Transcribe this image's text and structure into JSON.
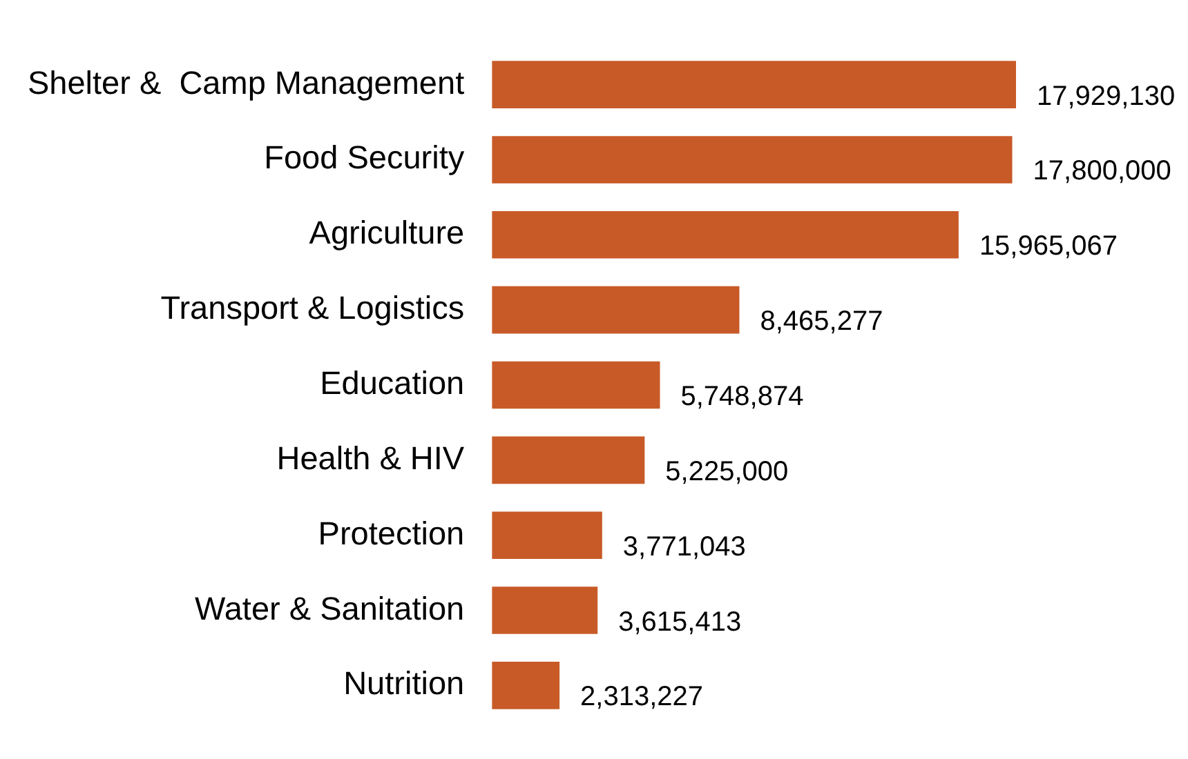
{
  "chart_data": {
    "type": "bar",
    "orientation": "horizontal",
    "categories": [
      "Shelter &  Camp Management",
      "Food Security",
      "Agriculture",
      "Transport & Logistics",
      "Education",
      "Health & HIV",
      "Protection",
      "Water & Sanitation",
      "Nutrition"
    ],
    "values": [
      17929130,
      17800000,
      15965067,
      8465277,
      5748874,
      5225000,
      3771043,
      3615413,
      2313227
    ],
    "value_labels": [
      "17,929,130",
      "17,800,000",
      "15,965,067",
      "8,465,277",
      "5,748,874",
      "5,225,000",
      "3,771,043",
      "3,615,413",
      "2,313,227"
    ],
    "color": "#c85a28",
    "legend": false,
    "tick_labels": "y"
  }
}
